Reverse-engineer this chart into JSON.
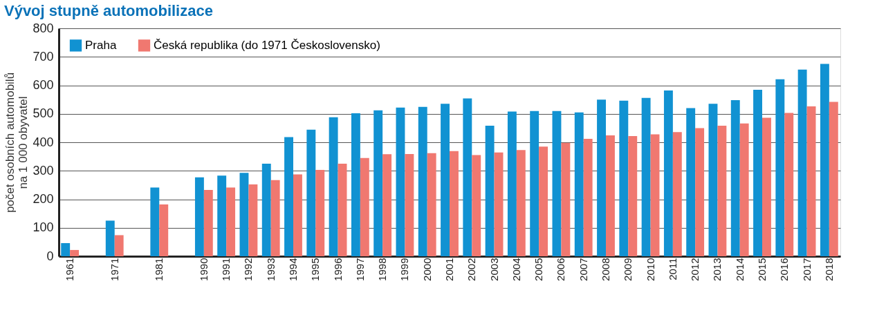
{
  "chart_data": {
    "type": "bar",
    "title": "Vývoj stupně automobilizace",
    "ylabel": "počet osobních automobilů\nna 1 000 obyvatel",
    "categories": [
      "1961",
      null,
      "1971",
      null,
      "1981",
      null,
      "1990",
      "1991",
      "1992",
      "1993",
      "1994",
      "1995",
      "1996",
      "1997",
      "1998",
      "1999",
      "2000",
      "2001",
      "2002",
      "2003",
      "2004",
      "2005",
      "2006",
      "2007",
      "2008",
      "2009",
      "2010",
      "2011",
      "2012",
      "2013",
      "2014",
      "2015",
      "2016",
      "2017",
      "2018"
    ],
    "series": [
      {
        "name": "Praha",
        "color": "#1192d2",
        "values": [
          46,
          null,
          125,
          null,
          241,
          null,
          277,
          283,
          293,
          325,
          418,
          444,
          488,
          502,
          512,
          522,
          524,
          535,
          554,
          458,
          508,
          510,
          510,
          505,
          550,
          546,
          556,
          582,
          520,
          535,
          548,
          584,
          621,
          655,
          675
        ]
      },
      {
        "name": "Česká republika (do 1971 Československo)",
        "color": "#f07870",
        "values": [
          22,
          null,
          74,
          null,
          182,
          null,
          233,
          241,
          252,
          267,
          287,
          303,
          325,
          345,
          358,
          359,
          362,
          369,
          355,
          364,
          373,
          385,
          398,
          412,
          424,
          422,
          428,
          436,
          450,
          458,
          466,
          486,
          503,
          526,
          542
        ]
      }
    ],
    "ylim": [
      0,
      800
    ],
    "yticks": [
      0,
      100,
      200,
      300,
      400,
      500,
      600,
      700,
      800
    ],
    "grid": "y",
    "legend": "top left"
  }
}
